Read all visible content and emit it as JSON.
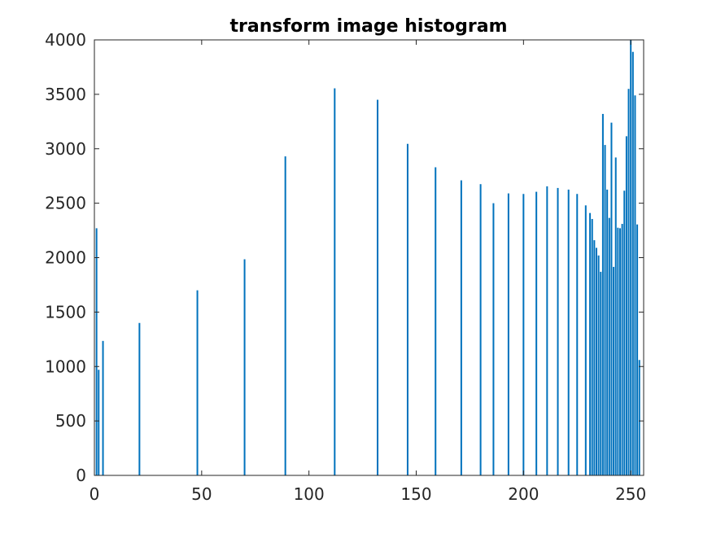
{
  "chart_data": {
    "type": "bar",
    "title": "transform image histogram",
    "xlabel": "",
    "ylabel": "",
    "xlim": [
      0,
      256
    ],
    "ylim": [
      0,
      4000
    ],
    "grid": false,
    "legend": "none",
    "bar_color": "#0072BD",
    "axis_color": "#262626",
    "x_ticks": [
      0,
      50,
      100,
      150,
      200,
      250
    ],
    "y_ticks": [
      0,
      500,
      1000,
      1500,
      2000,
      2500,
      3000,
      3500,
      4000
    ],
    "series": [
      {
        "x": [
          1,
          2,
          4,
          21,
          48,
          70,
          89,
          112,
          132,
          146,
          159,
          171,
          180,
          186,
          193,
          200,
          206,
          211,
          216,
          221,
          225,
          229,
          231,
          232,
          233,
          234,
          235,
          236,
          237,
          238,
          239,
          240,
          241,
          242,
          243,
          244,
          245,
          246,
          247,
          248,
          249,
          250,
          251,
          252,
          253,
          254,
          255
        ],
        "values": [
          2270,
          970,
          1235,
          1400,
          1700,
          1985,
          2930,
          3555,
          3450,
          3045,
          2830,
          2710,
          2675,
          2500,
          2590,
          2585,
          2605,
          2655,
          2640,
          2625,
          2585,
          2480,
          2410,
          2355,
          2160,
          2090,
          2020,
          1870,
          3320,
          3035,
          2625,
          2365,
          3240,
          1915,
          2920,
          2275,
          2270,
          2310,
          2615,
          3115,
          3550,
          4000,
          3890,
          3490,
          2305,
          1060,
          0
        ]
      }
    ]
  }
}
